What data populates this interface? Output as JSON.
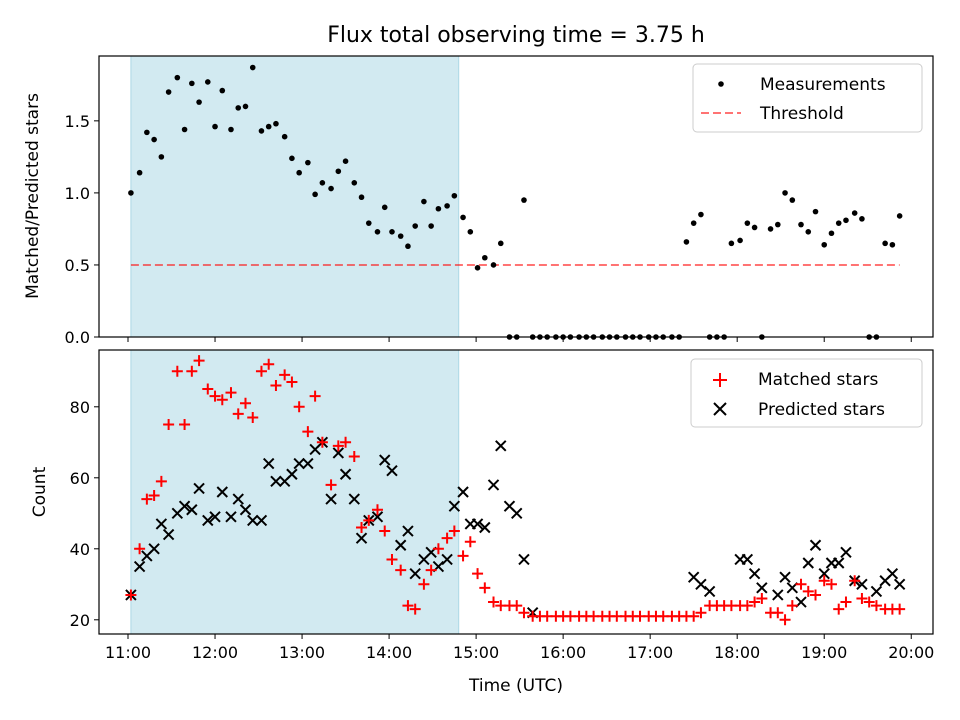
{
  "title": "Flux total observing time = 3.75 h",
  "colors": {
    "shade": "#add8e6",
    "threshold": "#ff0000",
    "matched": "#ff0000",
    "predicted": "#000000",
    "measurement": "#000000"
  },
  "chart_data": [
    {
      "type": "scatter",
      "panel": "top",
      "ylabel": "Matched/Predicted stars",
      "ylim": [
        0,
        1.95
      ],
      "yticks": [
        "0.0",
        "0.5",
        "1.0",
        "1.5"
      ],
      "xlim": [
        "10:40",
        "20:15"
      ],
      "shaded_span": [
        "11:02",
        "14:48"
      ],
      "legend_position": "upper right",
      "series": [
        {
          "name": "Measurements",
          "marker": "dot",
          "x": [
            "11:02",
            "11:08",
            "11:13",
            "11:18",
            "11:23",
            "11:28",
            "11:34",
            "11:39",
            "11:44",
            "11:49",
            "11:55",
            "12:00",
            "12:05",
            "12:11",
            "12:16",
            "12:21",
            "12:26",
            "12:32",
            "12:37",
            "12:42",
            "12:48",
            "12:53",
            "12:58",
            "13:04",
            "13:09",
            "13:14",
            "13:20",
            "13:25",
            "13:30",
            "13:36",
            "13:41",
            "13:46",
            "13:52",
            "13:57",
            "14:02",
            "14:08",
            "14:13",
            "14:18",
            "14:24",
            "14:29",
            "14:34",
            "14:40",
            "14:45",
            "14:51",
            "14:56",
            "15:01",
            "15:06",
            "15:12",
            "15:17",
            "15:23",
            "15:28",
            "15:33",
            "15:39",
            "15:44",
            "15:49",
            "15:55",
            "16:00",
            "16:05",
            "16:11",
            "16:16",
            "16:21",
            "16:27",
            "16:32",
            "16:37",
            "16:43",
            "16:48",
            "16:53",
            "16:59",
            "17:04",
            "17:09",
            "17:15",
            "17:20",
            "17:25",
            "17:30",
            "17:35",
            "17:41",
            "17:46",
            "17:51",
            "17:56",
            "18:02",
            "18:07",
            "18:12",
            "18:17",
            "18:23",
            "18:28",
            "18:33",
            "18:38",
            "18:44",
            "18:49",
            "18:54",
            "19:00",
            "19:05",
            "19:10",
            "19:15",
            "19:21",
            "19:26",
            "19:31",
            "19:36",
            "19:42",
            "19:47",
            "19:52"
          ],
          "y": [
            1.0,
            1.14,
            1.42,
            1.37,
            1.25,
            1.7,
            1.8,
            1.44,
            1.76,
            1.63,
            1.77,
            1.46,
            1.71,
            1.44,
            1.59,
            1.6,
            1.87,
            1.43,
            1.46,
            1.48,
            1.39,
            1.24,
            1.14,
            1.21,
            0.99,
            1.07,
            1.03,
            1.15,
            1.22,
            1.07,
            0.97,
            0.79,
            0.73,
            0.9,
            0.73,
            0.7,
            0.63,
            0.77,
            0.94,
            0.77,
            0.89,
            0.91,
            0.98,
            0.83,
            0.73,
            0.48,
            0.55,
            0.5,
            0.65,
            0.0,
            0.0,
            0.95,
            0.0,
            0.0,
            0.0,
            0.0,
            0.0,
            0.0,
            0.0,
            0.0,
            0.0,
            0.0,
            0.0,
            0.0,
            0.0,
            0.0,
            0.0,
            0.0,
            0.0,
            0.0,
            0.0,
            0.0,
            0.66,
            0.79,
            0.85,
            0.0,
            0.0,
            0.0,
            0.65,
            0.67,
            0.79,
            0.76,
            0.0,
            0.75,
            0.78,
            1.0,
            0.95,
            0.78,
            0.73,
            0.87,
            0.64,
            0.72,
            0.79,
            0.81,
            0.86,
            0.82,
            0.0,
            0.0,
            0.65,
            0.64,
            0.84
          ]
        },
        {
          "name": "Threshold",
          "style": "dashed",
          "x": [
            "11:02",
            "19:52"
          ],
          "y": [
            0.5,
            0.5
          ]
        }
      ]
    },
    {
      "type": "scatter",
      "panel": "bottom",
      "xlabel": "Time (UTC)",
      "ylabel": "Count",
      "ylim": [
        16,
        96
      ],
      "yticks": [
        "20",
        "40",
        "60",
        "80"
      ],
      "xlim": [
        "10:40",
        "20:15"
      ],
      "xticks": [
        "11:00",
        "12:00",
        "13:00",
        "14:00",
        "15:00",
        "16:00",
        "17:00",
        "18:00",
        "19:00",
        "20:00"
      ],
      "shaded_span": [
        "11:02",
        "14:48"
      ],
      "legend_position": "upper right",
      "x": [
        "11:02",
        "11:08",
        "11:13",
        "11:18",
        "11:23",
        "11:28",
        "11:34",
        "11:39",
        "11:44",
        "11:49",
        "11:55",
        "12:00",
        "12:05",
        "12:11",
        "12:16",
        "12:21",
        "12:26",
        "12:32",
        "12:37",
        "12:42",
        "12:48",
        "12:53",
        "12:58",
        "13:04",
        "13:09",
        "13:14",
        "13:20",
        "13:25",
        "13:30",
        "13:36",
        "13:41",
        "13:46",
        "13:52",
        "13:57",
        "14:02",
        "14:08",
        "14:13",
        "14:18",
        "14:24",
        "14:29",
        "14:34",
        "14:40",
        "14:45",
        "14:51",
        "14:56",
        "15:01",
        "15:06",
        "15:12",
        "15:17",
        "15:23",
        "15:28",
        "15:33",
        "15:39",
        "15:44",
        "15:49",
        "15:55",
        "16:00",
        "16:05",
        "16:11",
        "16:16",
        "16:21",
        "16:27",
        "16:32",
        "16:37",
        "16:43",
        "16:48",
        "16:53",
        "16:59",
        "17:04",
        "17:09",
        "17:15",
        "17:20",
        "17:25",
        "17:30",
        "17:35",
        "17:41",
        "17:46",
        "17:51",
        "17:56",
        "18:02",
        "18:07",
        "18:12",
        "18:17",
        "18:23",
        "18:28",
        "18:33",
        "18:38",
        "18:44",
        "18:49",
        "18:54",
        "19:00",
        "19:05",
        "19:10",
        "19:15",
        "19:21",
        "19:26",
        "19:31",
        "19:36",
        "19:42",
        "19:47",
        "19:52"
      ],
      "series": [
        {
          "name": "Matched stars",
          "marker": "plus",
          "y": [
            27,
            40,
            54,
            55,
            59,
            75,
            90,
            75,
            90,
            93,
            85,
            83,
            82,
            84,
            78,
            81,
            77,
            90,
            92,
            86,
            89,
            87,
            80,
            73,
            83,
            70,
            58,
            69,
            70,
            66,
            46,
            48,
            51,
            45,
            37,
            34,
            24,
            23,
            30,
            34,
            40,
            43,
            45,
            38,
            42,
            33,
            29,
            25,
            24,
            24,
            24,
            22,
            21,
            21,
            21,
            21,
            21,
            21,
            21,
            21,
            21,
            21,
            21,
            21,
            21,
            21,
            21,
            21,
            21,
            21,
            21,
            21,
            21,
            21,
            22,
            24,
            24,
            24,
            24,
            24,
            24,
            25,
            26,
            22,
            22,
            20,
            24,
            30,
            28,
            27,
            31,
            30,
            23,
            25,
            31,
            26,
            25,
            24,
            23,
            23,
            23
          ]
        },
        {
          "name": "Predicted stars",
          "marker": "x",
          "y": [
            27,
            35,
            38,
            40,
            47,
            44,
            50,
            52,
            51,
            57,
            48,
            49,
            56,
            49,
            54,
            51,
            48,
            48,
            64,
            59,
            59,
            61,
            64,
            64,
            68,
            70,
            54,
            67,
            61,
            54,
            43,
            48,
            49,
            65,
            62,
            41,
            45,
            33,
            37,
            39,
            35,
            37,
            52,
            56,
            47,
            47,
            46,
            58,
            69,
            52,
            50,
            37,
            22,
            null,
            null,
            null,
            null,
            null,
            null,
            null,
            null,
            null,
            null,
            null,
            null,
            null,
            null,
            null,
            null,
            null,
            null,
            null,
            null,
            32,
            30,
            28,
            null,
            null,
            null,
            37,
            37,
            33,
            29,
            null,
            27,
            32,
            29,
            25,
            36,
            41,
            33,
            36,
            36,
            39,
            31,
            30,
            null,
            28,
            31,
            33,
            30
          ]
        }
      ]
    }
  ]
}
